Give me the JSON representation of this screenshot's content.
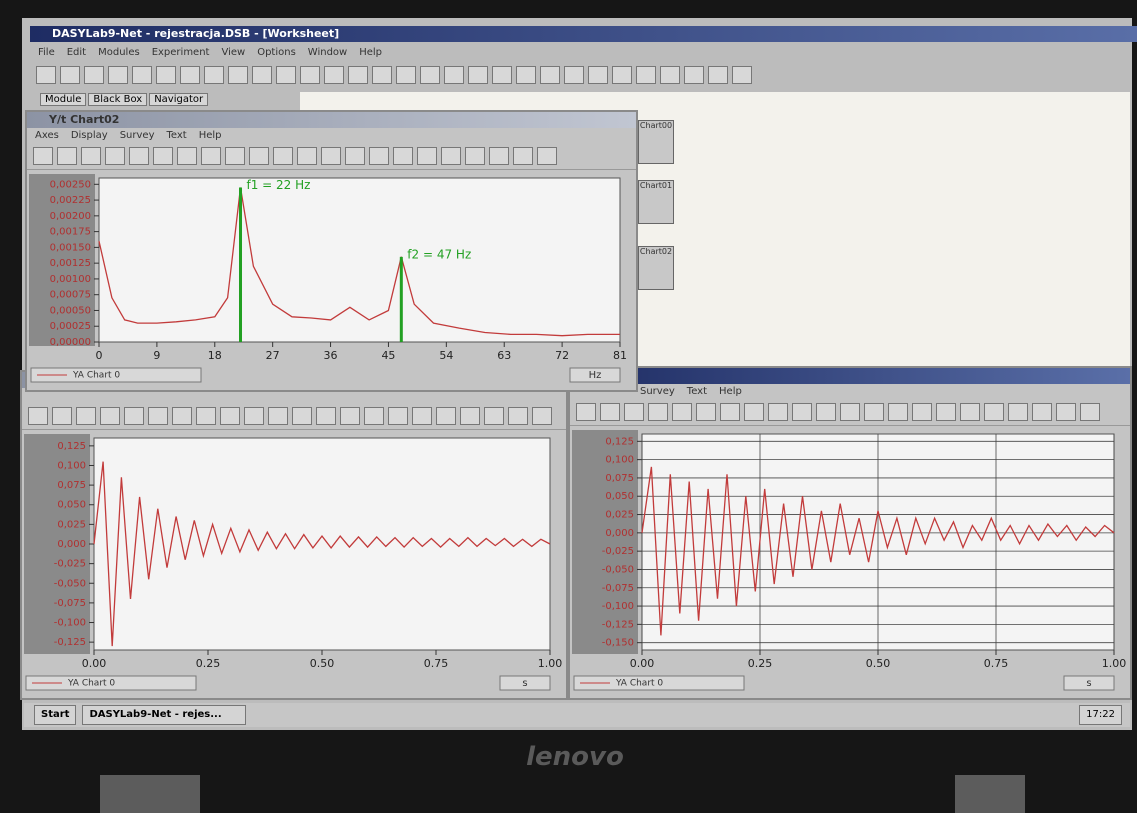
{
  "app": {
    "title": "DASYLab9-Net - rejestracja.DSB - [Worksheet]",
    "menu": [
      "File",
      "Edit",
      "Modules",
      "Experiment",
      "View",
      "Options",
      "Window",
      "Help"
    ],
    "tabs": [
      "Module",
      "Black Box",
      "Navigator"
    ]
  },
  "worksheet_modules": [
    "Chart00",
    "Chart01",
    "Chart02"
  ],
  "windows": [
    {
      "title": "Y/t Chart02",
      "menu": [
        "Axes",
        "Display",
        "Survey",
        "Text",
        "Help"
      ],
      "chart_data": {
        "type": "line",
        "x": [
          0,
          2,
          4,
          6,
          9,
          12,
          15,
          18,
          20,
          22,
          24,
          27,
          30,
          33,
          36,
          39,
          42,
          45,
          47,
          49,
          52,
          56,
          60,
          64,
          68,
          72,
          76,
          81
        ],
        "series": [
          {
            "name": "YA Chart 0",
            "color": "#c23b3b",
            "values": [
              0.0016,
              0.0007,
              0.00035,
              0.0003,
              0.0003,
              0.00032,
              0.00035,
              0.0004,
              0.0007,
              0.00245,
              0.0012,
              0.0006,
              0.0004,
              0.00038,
              0.00035,
              0.00055,
              0.00035,
              0.0005,
              0.00135,
              0.0006,
              0.0003,
              0.00022,
              0.00015,
              0.00012,
              0.00012,
              0.0001,
              0.00012,
              0.00012
            ]
          }
        ],
        "markers": [
          {
            "label": "f1 = 22 Hz",
            "x": 22,
            "value": 0.00245,
            "color": "#22a022"
          },
          {
            "label": "f2 = 47 Hz",
            "x": 47,
            "value": 0.00135,
            "color": "#22a022"
          }
        ],
        "xlim": [
          0,
          81
        ],
        "xticks": [
          0,
          9,
          18,
          27,
          36,
          45,
          54,
          63,
          72,
          81
        ],
        "ylim": [
          0,
          0.0026
        ],
        "yticks": [
          {
            "value": 0,
            "label": "0,00000"
          },
          {
            "value": 0.00025,
            "label": "0,00025"
          },
          {
            "value": 0.0005,
            "label": "0,00050"
          },
          {
            "value": 0.00075,
            "label": "0,00075"
          },
          {
            "value": 0.001,
            "label": "0,00100"
          },
          {
            "value": 0.00125,
            "label": "0,00125"
          },
          {
            "value": 0.0015,
            "label": "0,00150"
          },
          {
            "value": 0.00175,
            "label": "0,00175"
          },
          {
            "value": 0.002,
            "label": "0,00200"
          },
          {
            "value": 0.00225,
            "label": "0,00225"
          },
          {
            "value": 0.0025,
            "label": "0,00250"
          }
        ],
        "x_unit": "Hz",
        "grid": false
      }
    },
    {
      "chart_data": {
        "type": "line",
        "x": [
          0,
          0.02,
          0.04,
          0.06,
          0.08,
          0.1,
          0.12,
          0.14,
          0.16,
          0.18,
          0.2,
          0.22,
          0.24,
          0.26,
          0.28,
          0.3,
          0.32,
          0.34,
          0.36,
          0.38,
          0.4,
          0.42,
          0.44,
          0.46,
          0.48,
          0.5,
          0.52,
          0.54,
          0.56,
          0.58,
          0.6,
          0.62,
          0.64,
          0.66,
          0.68,
          0.7,
          0.72,
          0.74,
          0.76,
          0.78,
          0.8,
          0.82,
          0.84,
          0.86,
          0.88,
          0.9,
          0.92,
          0.94,
          0.96,
          0.98,
          1
        ],
        "series": [
          {
            "name": "YA Chart 0",
            "color": "#c23b3b",
            "values": [
              0,
              0.105,
              -0.13,
              0.085,
              -0.07,
              0.06,
              -0.045,
              0.045,
              -0.03,
              0.035,
              -0.02,
              0.03,
              -0.015,
              0.025,
              -0.012,
              0.02,
              -0.01,
              0.018,
              -0.008,
              0.015,
              -0.006,
              0.013,
              -0.006,
              0.012,
              -0.005,
              0.01,
              -0.005,
              0.01,
              -0.004,
              0.009,
              -0.004,
              0.009,
              -0.003,
              0.008,
              -0.004,
              0.008,
              -0.003,
              0.007,
              -0.004,
              0.007,
              -0.003,
              0.008,
              -0.003,
              0.007,
              -0.002,
              0.007,
              -0.003,
              0.006,
              -0.003,
              0.006,
              0
            ]
          }
        ],
        "xlim": [
          0,
          1
        ],
        "xticks": [
          {
            "value": 0,
            "label": "0.00"
          },
          {
            "value": 0.25,
            "label": "0.25"
          },
          {
            "value": 0.5,
            "label": "0.50"
          },
          {
            "value": 0.75,
            "label": "0.75"
          },
          {
            "value": 1,
            "label": "1.00"
          }
        ],
        "ylim": [
          -0.135,
          0.135
        ],
        "yticks": [
          {
            "value": 0.125,
            "label": "0,125"
          },
          {
            "value": 0.1,
            "label": "0,100"
          },
          {
            "value": 0.075,
            "label": "0,075"
          },
          {
            "value": 0.05,
            "label": "0,050"
          },
          {
            "value": 0.025,
            "label": "0,025"
          },
          {
            "value": 0,
            "label": "0,000"
          },
          {
            "value": -0.025,
            "label": "-0,025"
          },
          {
            "value": -0.05,
            "label": "-0,050"
          },
          {
            "value": -0.075,
            "label": "-0,075"
          },
          {
            "value": -0.1,
            "label": "-0,100"
          },
          {
            "value": -0.125,
            "label": "-0,125"
          }
        ],
        "x_unit": "s",
        "grid": false
      }
    },
    {
      "menu": [
        "Survey",
        "Text",
        "Help"
      ],
      "chart_data": {
        "type": "line",
        "x": [
          0,
          0.02,
          0.04,
          0.06,
          0.08,
          0.1,
          0.12,
          0.14,
          0.16,
          0.18,
          0.2,
          0.22,
          0.24,
          0.26,
          0.28,
          0.3,
          0.32,
          0.34,
          0.36,
          0.38,
          0.4,
          0.42,
          0.44,
          0.46,
          0.48,
          0.5,
          0.52,
          0.54,
          0.56,
          0.58,
          0.6,
          0.62,
          0.64,
          0.66,
          0.68,
          0.7,
          0.72,
          0.74,
          0.76,
          0.78,
          0.8,
          0.82,
          0.84,
          0.86,
          0.88,
          0.9,
          0.92,
          0.94,
          0.96,
          0.98,
          1
        ],
        "series": [
          {
            "name": "YA Chart 0",
            "color": "#c23b3b",
            "values": [
              0,
              0.09,
              -0.14,
              0.08,
              -0.11,
              0.07,
              -0.12,
              0.06,
              -0.09,
              0.08,
              -0.1,
              0.05,
              -0.08,
              0.06,
              -0.07,
              0.04,
              -0.06,
              0.05,
              -0.05,
              0.03,
              -0.04,
              0.04,
              -0.03,
              0.02,
              -0.04,
              0.03,
              -0.02,
              0.02,
              -0.03,
              0.02,
              -0.015,
              0.02,
              -0.01,
              0.015,
              -0.02,
              0.01,
              -0.01,
              0.02,
              -0.01,
              0.01,
              -0.015,
              0.01,
              -0.01,
              0.012,
              -0.005,
              0.01,
              -0.01,
              0.008,
              -0.005,
              0.01,
              0
            ]
          }
        ],
        "xlim": [
          0,
          1
        ],
        "xticks": [
          {
            "value": 0,
            "label": "0.00"
          },
          {
            "value": 0.25,
            "label": "0.25"
          },
          {
            "value": 0.5,
            "label": "0.50"
          },
          {
            "value": 0.75,
            "label": "0.75"
          },
          {
            "value": 1,
            "label": "1.00"
          }
        ],
        "ylim": [
          -0.16,
          0.135
        ],
        "yticks": [
          {
            "value": 0.125,
            "label": "0,125"
          },
          {
            "value": 0.1,
            "label": "0,100"
          },
          {
            "value": 0.075,
            "label": "0,075"
          },
          {
            "value": 0.05,
            "label": "0,050"
          },
          {
            "value": 0.025,
            "label": "0,025"
          },
          {
            "value": 0,
            "label": "0,000"
          },
          {
            "value": -0.025,
            "label": "-0,025"
          },
          {
            "value": -0.05,
            "label": "-0,050"
          },
          {
            "value": -0.075,
            "label": "-0,075"
          },
          {
            "value": -0.1,
            "label": "-0,100"
          },
          {
            "value": -0.125,
            "label": "-0,125"
          },
          {
            "value": -0.15,
            "label": "-0,150"
          }
        ],
        "x_unit": "s",
        "grid": true
      }
    }
  ],
  "taskbar": {
    "start": "Start",
    "task": "DASYLab9-Net - rejes...",
    "clock": "17:22"
  },
  "brand": "lenovo"
}
